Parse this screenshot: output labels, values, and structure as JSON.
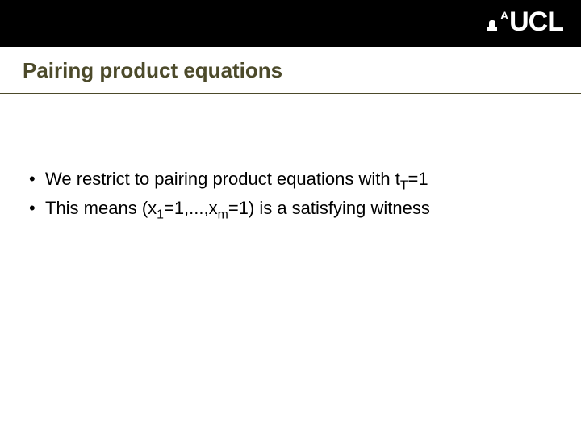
{
  "header": {
    "logo_main": "UCL",
    "logo_sup": "A"
  },
  "slide": {
    "title": "Pairing product equations",
    "bullets": [
      {
        "pre": "We restrict to pairing product equations with t",
        "sub1": "T",
        "post1": "=1"
      },
      {
        "pre": "This means (x",
        "sub1": "1",
        "mid": "=1,...,x",
        "sub2": "m",
        "post2": "=1) is a satisfying witness"
      }
    ]
  },
  "styling": {
    "header_bg": "#000000",
    "accent_color": "#4c4a2a",
    "title_fontsize": 26,
    "body_fontsize": 22,
    "page_bg": "#ffffff",
    "logo_color": "#ffffff"
  }
}
